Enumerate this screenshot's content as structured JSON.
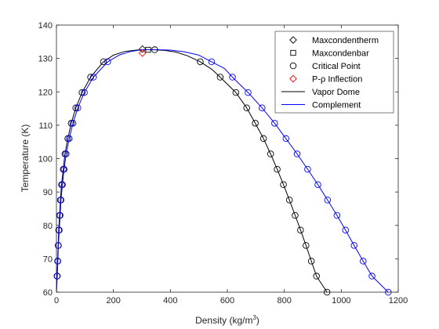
{
  "chart_data": {
    "type": "line",
    "title": "",
    "xlabel": "Density (kg/m",
    "xlabel_sup": "3",
    "xlabel_tail": ")",
    "ylabel": "Temperature (K)",
    "xlim": [
      0,
      1200
    ],
    "ylim": [
      60,
      140
    ],
    "xticks": [
      0,
      200,
      400,
      600,
      800,
      1000,
      1200
    ],
    "yticks": [
      60,
      70,
      80,
      90,
      100,
      110,
      120,
      130,
      140
    ],
    "grid": false,
    "legend_position": "top-right",
    "colors": {
      "vapor_dome": "#000000",
      "complement": "#0000ff",
      "inflection": "#ff0000",
      "axis": "#262626"
    },
    "legend": [
      {
        "label": "Maxcondentherm",
        "marker": "diamond",
        "color": "#000000"
      },
      {
        "label": "Maxcondenbar",
        "marker": "square",
        "color": "#000000"
      },
      {
        "label": "Critical Point",
        "marker": "circle",
        "color": "#000000"
      },
      {
        "label": "P-ρ Inflection",
        "marker": "diamond",
        "color": "#ff0000"
      },
      {
        "label": "Vapor Dome",
        "marker": "line",
        "color": "#000000"
      },
      {
        "label": "Complement",
        "marker": "line",
        "color": "#0000ff"
      }
    ],
    "series": [
      {
        "name": "Vapor Dome",
        "color": "#000000",
        "points": [
          [
            0,
            60
          ],
          [
            2,
            64.8
          ],
          [
            4,
            69.3
          ],
          [
            6,
            74
          ],
          [
            8,
            78.6
          ],
          [
            11,
            83
          ],
          [
            14,
            87.6
          ],
          [
            18,
            92.2
          ],
          [
            24,
            96.8
          ],
          [
            30,
            101.4
          ],
          [
            40,
            106
          ],
          [
            52,
            110.6
          ],
          [
            68,
            115.2
          ],
          [
            90,
            119.8
          ],
          [
            120,
            124.4
          ],
          [
            165,
            129
          ],
          [
            200,
            131
          ],
          [
            240,
            132.1
          ],
          [
            280,
            132.5
          ],
          [
            300,
            132.6
          ],
          [
            325,
            132.6
          ],
          [
            340,
            132.6
          ],
          [
            380,
            132.4
          ],
          [
            420,
            131.9
          ],
          [
            460,
            130.8
          ],
          [
            505,
            129
          ],
          [
            545,
            126.8
          ],
          [
            575,
            124.4
          ],
          [
            630,
            119.8
          ],
          [
            668,
            115.2
          ],
          [
            698,
            110.6
          ],
          [
            727,
            106
          ],
          [
            752,
            101.4
          ],
          [
            775,
            96.8
          ],
          [
            797,
            92.2
          ],
          [
            818,
            87.6
          ],
          [
            838,
            83
          ],
          [
            857,
            78.6
          ],
          [
            876,
            74
          ],
          [
            895,
            69.3
          ],
          [
            913,
            64.8
          ],
          [
            950,
            60
          ]
        ],
        "markers": [
          [
            2,
            64.8
          ],
          [
            4,
            69.3
          ],
          [
            6,
            74
          ],
          [
            8,
            78.6
          ],
          [
            11,
            83
          ],
          [
            14,
            87.6
          ],
          [
            18,
            92.2
          ],
          [
            24,
            96.8
          ],
          [
            30,
            101.4
          ],
          [
            40,
            106
          ],
          [
            52,
            110.6
          ],
          [
            68,
            115.2
          ],
          [
            90,
            119.8
          ],
          [
            120,
            124.4
          ],
          [
            165,
            129
          ],
          [
            505,
            129
          ],
          [
            575,
            124.4
          ],
          [
            630,
            119.8
          ],
          [
            668,
            115.2
          ],
          [
            698,
            110.6
          ],
          [
            727,
            106
          ],
          [
            752,
            101.4
          ],
          [
            775,
            96.8
          ],
          [
            797,
            92.2
          ],
          [
            818,
            87.6
          ],
          [
            838,
            83
          ],
          [
            857,
            78.6
          ],
          [
            876,
            74
          ],
          [
            895,
            69.3
          ],
          [
            913,
            64.8
          ],
          [
            950,
            60
          ]
        ]
      },
      {
        "name": "Complement",
        "color": "#0000ff",
        "points": [
          [
            0,
            60
          ],
          [
            3,
            64.8
          ],
          [
            5,
            69.3
          ],
          [
            7,
            74
          ],
          [
            10,
            78.6
          ],
          [
            13,
            83
          ],
          [
            16,
            87.6
          ],
          [
            21,
            92.2
          ],
          [
            27,
            96.8
          ],
          [
            34,
            101.4
          ],
          [
            45,
            106
          ],
          [
            58,
            110.6
          ],
          [
            75,
            115.2
          ],
          [
            98,
            119.8
          ],
          [
            130,
            124.4
          ],
          [
            180,
            129
          ],
          [
            220,
            131
          ],
          [
            260,
            132.1
          ],
          [
            300,
            132.6
          ],
          [
            350,
            132.6
          ],
          [
            400,
            132.5
          ],
          [
            450,
            132
          ],
          [
            500,
            131
          ],
          [
            545,
            129
          ],
          [
            590,
            127
          ],
          [
            618,
            124.4
          ],
          [
            673,
            119.8
          ],
          [
            722,
            115.2
          ],
          [
            766,
            110.6
          ],
          [
            806,
            106
          ],
          [
            845,
            101.4
          ],
          [
            882,
            96.8
          ],
          [
            918,
            92.2
          ],
          [
            952,
            87.6
          ],
          [
            985,
            83
          ],
          [
            1015,
            78.6
          ],
          [
            1045,
            74
          ],
          [
            1077,
            69.3
          ],
          [
            1108,
            64.8
          ],
          [
            1165,
            60
          ]
        ],
        "markers": [
          [
            3,
            64.8
          ],
          [
            5,
            69.3
          ],
          [
            7,
            74
          ],
          [
            10,
            78.6
          ],
          [
            13,
            83
          ],
          [
            16,
            87.6
          ],
          [
            21,
            92.2
          ],
          [
            27,
            96.8
          ],
          [
            34,
            101.4
          ],
          [
            45,
            106
          ],
          [
            58,
            110.6
          ],
          [
            75,
            115.2
          ],
          [
            98,
            119.8
          ],
          [
            130,
            124.4
          ],
          [
            180,
            129
          ],
          [
            545,
            129
          ],
          [
            618,
            124.4
          ],
          [
            673,
            119.8
          ],
          [
            722,
            115.2
          ],
          [
            766,
            110.6
          ],
          [
            806,
            106
          ],
          [
            845,
            101.4
          ],
          [
            882,
            96.8
          ],
          [
            918,
            92.2
          ],
          [
            952,
            87.6
          ],
          [
            985,
            83
          ],
          [
            1015,
            78.6
          ],
          [
            1045,
            74
          ],
          [
            1077,
            69.3
          ],
          [
            1108,
            64.8
          ],
          [
            1165,
            60
          ]
        ]
      }
    ],
    "special_points": [
      {
        "kind": "Maxcondentherm",
        "marker": "diamond",
        "color": "#000000",
        "x": 302,
        "y": 132.8
      },
      {
        "kind": "Maxcondenbar",
        "marker": "square",
        "color": "#000000",
        "x": 322,
        "y": 132.6
      },
      {
        "kind": "Critical Point",
        "marker": "circle",
        "color": "#000000",
        "x": 345,
        "y": 132.6
      },
      {
        "kind": "P-ρ Inflection",
        "marker": "diamond",
        "color": "#ff0000",
        "x": 302,
        "y": 131.6
      }
    ]
  }
}
